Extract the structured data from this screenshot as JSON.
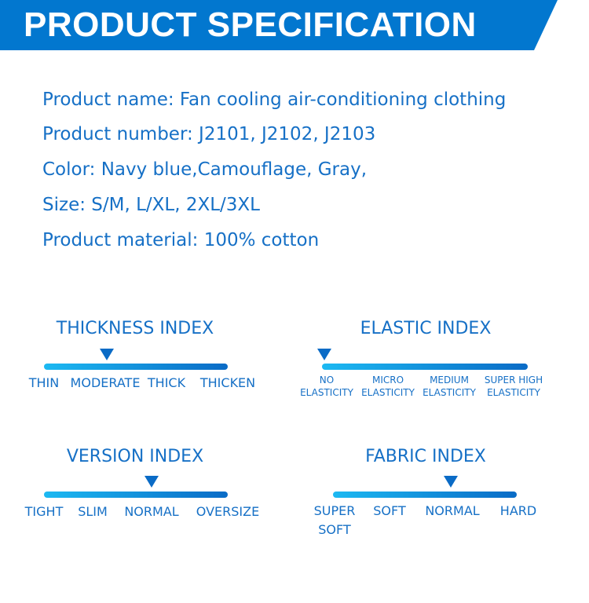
{
  "header": {
    "title": "PRODUCT SPECIFICATION",
    "color": "#0277cf"
  },
  "specs": [
    "Product name: Fan cooling air-conditioning clothing",
    "Product number: J2101, J2102, J2103",
    "Color: Navy blue,Camouflage, Gray,",
    "Size: S/M, L/XL, 2XL/3XL",
    "Product material: 100% cotton"
  ],
  "indices": {
    "thickness": {
      "title": "THICKNESS INDEX",
      "labels": [
        "THIN",
        "MODERATE",
        "THICK",
        "THICKEN"
      ],
      "selected": "MODERATE"
    },
    "elastic": {
      "title": "ELASTIC INDEX",
      "labels": [
        [
          "NO",
          "ELASTICITY"
        ],
        [
          "MICRO",
          "ELASTICITY"
        ],
        [
          "MEDIUM",
          "ELASTICITY"
        ],
        [
          "SUPER HIGH",
          "ELASTICITY"
        ]
      ],
      "selected": "NO ELASTICITY"
    },
    "version": {
      "title": "VERSION INDEX",
      "labels": [
        "TIGHT",
        "SLIM",
        "NORMAL",
        "OVERSIZE"
      ],
      "selected": "NORMAL"
    },
    "fabric": {
      "title": "FABRIC INDEX",
      "labels": [
        [
          "SUPER",
          "SOFT"
        ],
        "SOFT",
        "NORMAL",
        "HARD"
      ],
      "selected": "NORMAL"
    }
  }
}
